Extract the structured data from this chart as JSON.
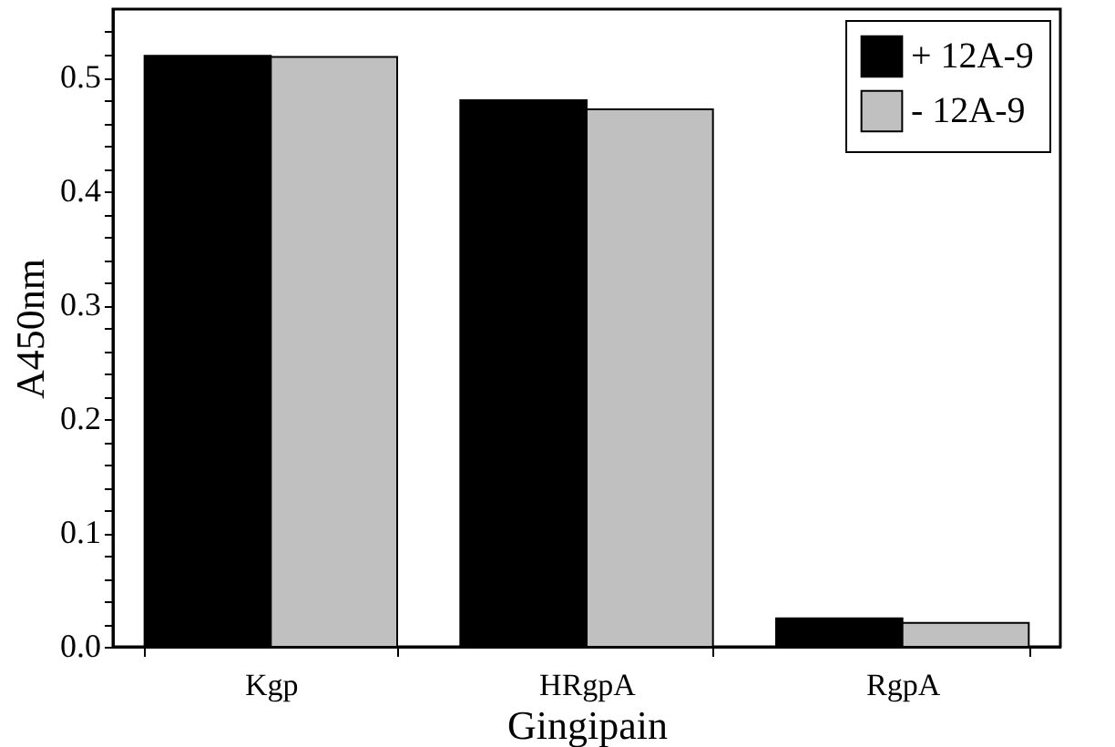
{
  "chart_data": {
    "type": "bar",
    "xlabel": "Gingipain",
    "ylabel": "A450nm",
    "categories": [
      "Kgp",
      "HRgpA",
      "RgpA"
    ],
    "series": [
      {
        "name": "+ 12A-9",
        "color": "#000000",
        "values": [
          0.519,
          0.48,
          0.025
        ]
      },
      {
        "name": "- 12A-9",
        "color": "#c0c0c0",
        "values": [
          0.518,
          0.472,
          0.021
        ]
      }
    ],
    "ylim": [
      0,
      0.56
    ],
    "yticks": [
      {
        "value": 0,
        "label": "0.0"
      },
      {
        "value": 0.02,
        "label": null
      },
      {
        "value": 0.04,
        "label": null
      },
      {
        "value": 0.06,
        "label": null
      },
      {
        "value": 0.08,
        "label": null
      },
      {
        "value": 0.1,
        "label": "0.1"
      },
      {
        "value": 0.12,
        "label": null
      },
      {
        "value": 0.14,
        "label": null
      },
      {
        "value": 0.16,
        "label": null
      },
      {
        "value": 0.18,
        "label": null
      },
      {
        "value": 0.2,
        "label": "0.2"
      },
      {
        "value": 0.22,
        "label": null
      },
      {
        "value": 0.24,
        "label": null
      },
      {
        "value": 0.26,
        "label": null
      },
      {
        "value": 0.28,
        "label": null
      },
      {
        "value": 0.3,
        "label": "0.3"
      },
      {
        "value": 0.32,
        "label": null
      },
      {
        "value": 0.34,
        "label": null
      },
      {
        "value": 0.36,
        "label": null
      },
      {
        "value": 0.38,
        "label": null
      },
      {
        "value": 0.4,
        "label": "0.4"
      },
      {
        "value": 0.42,
        "label": null
      },
      {
        "value": 0.44,
        "label": null
      },
      {
        "value": 0.46,
        "label": null
      },
      {
        "value": 0.48,
        "label": null
      },
      {
        "value": 0.5,
        "label": "0.5"
      },
      {
        "value": 0.52,
        "label": null
      },
      {
        "value": 0.54,
        "label": null
      }
    ],
    "grid": false,
    "legend": "top right"
  }
}
